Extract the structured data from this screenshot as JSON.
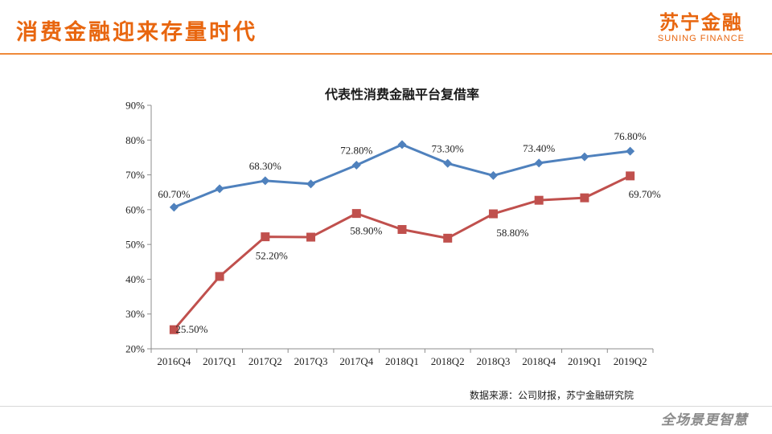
{
  "header": {
    "title": "消费金融迎来存量时代",
    "brand_cn": "苏宁金融",
    "brand_en": "SUNING FINANCE"
  },
  "footer": {
    "source": "数据来源：公司财报，苏宁金融研究院",
    "slogan": "全场景更智慧"
  },
  "colors": {
    "accent": "#e8660f",
    "series_blue": "#4f81bd",
    "series_red": "#c0504d"
  },
  "chart_data": {
    "type": "line",
    "title": "代表性消费金融平台复借率",
    "xlabel": "",
    "ylabel": "",
    "categories": [
      "2016Q4",
      "2017Q1",
      "2017Q2",
      "2017Q3",
      "2017Q4",
      "2018Q1",
      "2018Q2",
      "2018Q3",
      "2018Q4",
      "2019Q1",
      "2019Q2"
    ],
    "ylim": [
      20,
      90
    ],
    "yticks": [
      "20%",
      "30%",
      "40%",
      "50%",
      "60%",
      "70%",
      "80%",
      "90%"
    ],
    "grid": false,
    "legend": "none",
    "series": [
      {
        "color": "#4f81bd",
        "marker": "diamond",
        "values": [
          60.7,
          66.0,
          68.3,
          67.4,
          72.8,
          78.7,
          73.3,
          69.8,
          73.4,
          75.2,
          76.8
        ],
        "data_labels": [
          "60.70%",
          "",
          "68.30%",
          "",
          "72.80%",
          "",
          "73.30%",
          "",
          "73.40%",
          "",
          "76.80%"
        ]
      },
      {
        "color": "#c0504d",
        "marker": "square",
        "values": [
          25.5,
          40.8,
          52.2,
          52.1,
          58.9,
          54.3,
          51.8,
          58.8,
          62.7,
          63.4,
          69.7
        ],
        "data_labels": [
          "25.50%",
          "",
          "52.20%",
          "",
          "58.90%",
          "",
          "",
          "58.80%",
          "",
          "",
          "69.70%"
        ]
      }
    ]
  }
}
